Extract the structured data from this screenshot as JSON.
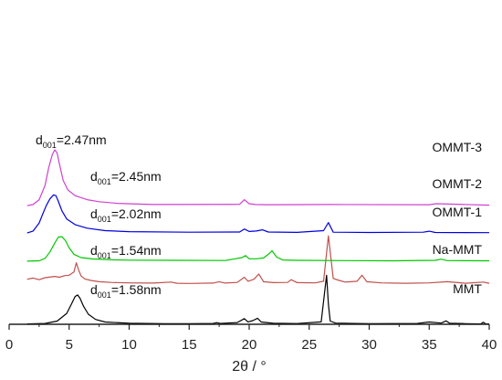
{
  "chart_data": {
    "type": "line",
    "xlabel": "2θ / °",
    "xlim": [
      0,
      40
    ],
    "xticks": [
      0,
      5,
      10,
      15,
      20,
      25,
      30,
      35,
      40
    ],
    "y_axis_visible": false,
    "grid": false,
    "legend": "none",
    "series": [
      {
        "name": "MMT",
        "color": "#000000",
        "x": [
          1.5,
          3.0,
          4.0,
          4.8,
          5.2,
          5.5,
          5.7,
          5.9,
          6.2,
          6.6,
          7.2,
          8.0,
          10,
          13,
          15,
          17,
          17.3,
          17.6,
          19,
          19.6,
          19.9,
          20.3,
          20.7,
          21.0,
          22,
          24,
          26.0,
          26.45,
          26.6,
          26.75,
          27.2,
          30,
          34,
          35,
          36,
          36.4,
          36.7,
          38,
          39.3,
          39.5,
          39.7,
          40
        ],
        "y": [
          0.05,
          0.1,
          0.4,
          1.35,
          2.55,
          3.45,
          3.65,
          3.25,
          2.25,
          1.25,
          0.6,
          0.28,
          0.13,
          0.08,
          0.07,
          0.1,
          0.2,
          0.1,
          0.22,
          0.7,
          0.3,
          0.45,
          0.75,
          0.28,
          0.12,
          0.09,
          0.3,
          6.1,
          2.5,
          0.4,
          0.15,
          0.08,
          0.1,
          0.28,
          0.15,
          0.42,
          0.12,
          0.08,
          0.05,
          0.25,
          0.06,
          0.05
        ],
        "offset": 0,
        "label": "MMT",
        "d_label": "1.58nm"
      },
      {
        "name": "Na-MMT",
        "color": "#c0504d",
        "x": [
          1.5,
          2.0,
          2.5,
          3.0,
          3.5,
          3.8,
          4.2,
          4.6,
          5.0,
          5.4,
          5.6,
          5.8,
          6.0,
          6.3,
          6.8,
          7.5,
          8.5,
          10,
          12,
          13.5,
          14,
          15,
          17,
          17.5,
          18,
          19,
          19.6,
          19.9,
          20.4,
          20.8,
          21.2,
          22,
          23.2,
          23.5,
          24,
          25.5,
          26.2,
          26.6,
          27.0,
          27.5,
          28,
          29.0,
          29.4,
          29.8,
          31,
          33,
          35,
          36.5,
          38,
          39.5,
          40
        ],
        "y": [
          0.7,
          0.85,
          0.65,
          0.9,
          1.0,
          1.05,
          0.95,
          1.15,
          1.2,
          1.6,
          2.75,
          1.8,
          1.1,
          0.75,
          0.55,
          0.4,
          0.3,
          0.25,
          0.22,
          0.35,
          0.2,
          0.18,
          0.22,
          0.4,
          0.22,
          0.3,
          0.95,
          0.45,
          0.7,
          1.35,
          0.4,
          0.28,
          0.3,
          0.65,
          0.28,
          0.25,
          0.45,
          6.1,
          0.8,
          0.55,
          0.35,
          0.45,
          1.2,
          0.4,
          0.25,
          0.2,
          0.25,
          0.4,
          0.2,
          0.35,
          0.2
        ],
        "offset": 4.9,
        "label": "Na-MMT",
        "d_label": "1.54nm"
      },
      {
        "name": "OMMT-1",
        "color": "#00c800",
        "x": [
          1.5,
          2.5,
          3.0,
          3.4,
          3.8,
          4.1,
          4.4,
          4.7,
          5.0,
          5.4,
          6.0,
          7.0,
          8.5,
          10,
          14,
          18,
          19.4,
          19.7,
          20.0,
          20.6,
          21.2,
          21.6,
          21.9,
          22.3,
          22.8,
          24,
          28,
          32,
          35.5,
          36,
          36.5,
          40
        ],
        "y": [
          0.05,
          0.1,
          0.4,
          1.2,
          2.3,
          3.05,
          3.1,
          2.6,
          1.7,
          0.9,
          0.5,
          0.32,
          0.22,
          0.18,
          0.15,
          0.13,
          0.5,
          0.75,
          0.35,
          0.35,
          0.45,
          0.9,
          1.35,
          0.55,
          0.2,
          0.15,
          0.12,
          0.1,
          0.15,
          0.3,
          0.12,
          0.1
        ],
        "offset": 7.8,
        "label": "OMMT-1",
        "d_label": "2.02nm"
      },
      {
        "name": "OMMT-2",
        "color": "#0000e0",
        "x": [
          1.5,
          2.0,
          2.5,
          2.8,
          3.1,
          3.4,
          3.7,
          3.9,
          4.1,
          4.4,
          4.8,
          5.5,
          6.5,
          8.0,
          10,
          15,
          19.2,
          19.6,
          20.0,
          20.6,
          21.1,
          21.6,
          24,
          26.2,
          26.6,
          27.0,
          30,
          34.5,
          35,
          35.5,
          40
        ],
        "y": [
          0.05,
          0.3,
          1.3,
          2.4,
          3.5,
          4.3,
          4.8,
          4.7,
          4.0,
          2.8,
          1.8,
          1.1,
          0.65,
          0.35,
          0.22,
          0.15,
          0.18,
          0.55,
          0.25,
          0.3,
          0.45,
          0.18,
          0.13,
          0.35,
          1.35,
          0.15,
          0.12,
          0.15,
          0.28,
          0.12,
          0.1
        ],
        "offset": 11.3,
        "label": "OMMT-2",
        "d_label": "2.45nm"
      },
      {
        "name": "OMMT-3",
        "color": "#d040d0",
        "x": [
          1.5,
          2.0,
          2.5,
          3.0,
          3.3,
          3.6,
          3.8,
          4.0,
          4.2,
          4.5,
          4.9,
          5.5,
          6.5,
          7.5,
          9,
          12,
          19.2,
          19.6,
          20.0,
          20.5,
          21.5,
          26.6,
          35,
          35.6,
          40
        ],
        "y": [
          0.05,
          0.2,
          0.8,
          2.6,
          4.8,
          6.4,
          7.0,
          6.6,
          5.2,
          3.2,
          2.0,
          1.3,
          0.8,
          0.55,
          0.35,
          0.2,
          0.22,
          0.8,
          0.3,
          0.2,
          0.18,
          0.2,
          0.18,
          0.3,
          0.12
        ],
        "offset": 14.7,
        "label": "OMMT-3",
        "d_label": "2.47nm"
      }
    ],
    "d_prefix_main": "d",
    "d_prefix_sub": "001",
    "d_prefix_eq": "="
  }
}
